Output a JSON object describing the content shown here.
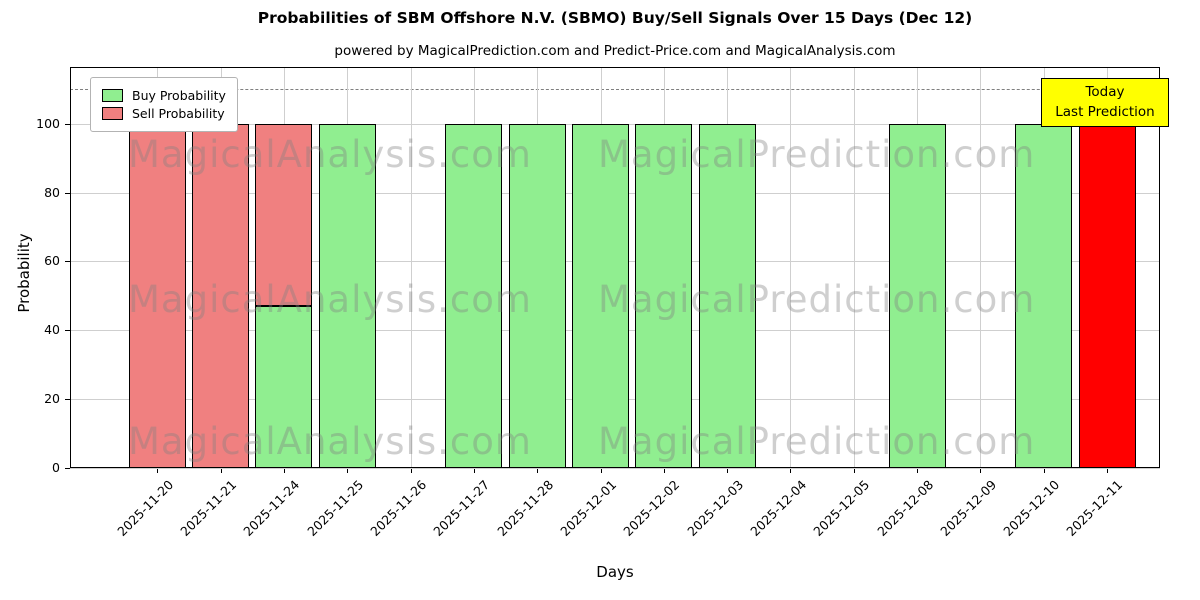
{
  "page": {
    "subtitle": "powered by MagicalPrediction.com and Predict-Price.com and MagicalAnalysis.com"
  },
  "axes": {
    "ylabel": "Probability",
    "xlabel": "Days",
    "yticks": [
      0,
      20,
      40,
      60,
      80,
      100
    ],
    "ymax": 116.5,
    "dashed_y": 110
  },
  "legend": {
    "items": [
      {
        "label": "Buy Probability",
        "color": "#90ee90"
      },
      {
        "label": "Sell Probability",
        "color": "#f08080"
      }
    ]
  },
  "annotation": {
    "lines": [
      "Today",
      "Last Prediction"
    ],
    "bg": "#ffff00"
  },
  "watermarks": {
    "left": "MagicalAnalysis.com",
    "right": "MagicalPrediction.com"
  },
  "chart_data": {
    "type": "bar",
    "stacked": true,
    "title": "Probabilities of SBM Offshore N.V. (SBMO) Buy/Sell Signals Over 15 Days (Dec 12)",
    "xlabel": "Days",
    "ylabel": "Probability",
    "ylim": [
      0,
      116.5
    ],
    "grid": true,
    "legend_position": "upper left",
    "categories": [
      "2025-11-20",
      "2025-11-21",
      "2025-11-24",
      "2025-11-25",
      "2025-11-26",
      "2025-11-27",
      "2025-11-28",
      "2025-12-01",
      "2025-12-02",
      "2025-12-03",
      "2025-12-04",
      "2025-12-05",
      "2025-12-08",
      "2025-12-09",
      "2025-12-10",
      "2025-12-11"
    ],
    "series": [
      {
        "name": "Buy Probability",
        "color": "#90ee90",
        "values": [
          0,
          0,
          47,
          100,
          0,
          100,
          100,
          100,
          100,
          100,
          0,
          0,
          100,
          0,
          100,
          0
        ]
      },
      {
        "name": "Sell Probability",
        "color": "#f08080",
        "values": [
          100,
          100,
          53,
          0,
          0,
          0,
          0,
          0,
          0,
          0,
          0,
          0,
          0,
          0,
          0,
          0
        ]
      },
      {
        "name": "Today Prediction",
        "color": "#ff0000",
        "values": [
          0,
          0,
          0,
          0,
          0,
          0,
          0,
          0,
          0,
          0,
          0,
          0,
          0,
          0,
          0,
          100
        ]
      }
    ]
  }
}
